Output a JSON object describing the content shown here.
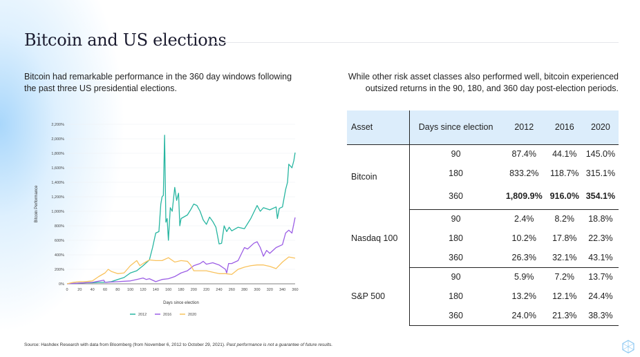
{
  "title": "Bitcoin and US elections",
  "left_text": "Bitcoin had remarkable performance in the 360 day windows following the past three US presidential elections.",
  "right_text": "While other risk asset classes also performed well, bitcoin experienced outsized returns in the 90, 180, and 360 day post-election periods.",
  "source": "Source: Hashdex Research with data from Bloomberg (from November 6, 2012 to October 29, 2021).",
  "disclaimer": "Past performance is not a guarantee of future results.",
  "table": {
    "headers": [
      "Asset",
      "Days since election",
      "2012",
      "2016",
      "2020"
    ],
    "groups": [
      {
        "asset": "Bitcoin",
        "rows": [
          [
            "90",
            "87.4%",
            "44.1%",
            "145.0%"
          ],
          [
            "180",
            "833.2%",
            "118.7%",
            "315.1%"
          ],
          [
            "360",
            "1,809.9%",
            "916.0%",
            "354.1%"
          ]
        ],
        "bold_last": true
      },
      {
        "asset": "Nasdaq 100",
        "rows": [
          [
            "90",
            "2.4%",
            "8.2%",
            "18.8%"
          ],
          [
            "180",
            "10.2%",
            "17.8%",
            "22.3%"
          ],
          [
            "360",
            "26.3%",
            "32.1%",
            "43.1%"
          ]
        ]
      },
      {
        "asset": "S&P 500",
        "rows": [
          [
            "90",
            "5.9%",
            "7.2%",
            "13.7%"
          ],
          [
            "180",
            "13.2%",
            "12.1%",
            "24.4%"
          ],
          [
            "360",
            "24.0%",
            "21.3%",
            "38.3%"
          ]
        ]
      }
    ]
  },
  "chart_data": {
    "type": "line",
    "xlabel": "Days since election",
    "ylabel": "Bitcoin Performance",
    "xlim": [
      0,
      360
    ],
    "ylim": [
      0,
      2200
    ],
    "xticks": [
      "0",
      "20",
      "40",
      "60",
      "80",
      "100",
      "120",
      "140",
      "160",
      "180",
      "200",
      "220",
      "240",
      "260",
      "280",
      "300",
      "320",
      "340",
      "360"
    ],
    "yticks": [
      "0%",
      "200%",
      "400%",
      "600%",
      "800%",
      "1,000%",
      "1,200%",
      "1,400%",
      "1,600%",
      "1,800%",
      "2,000%",
      "2,200%"
    ],
    "grid": true,
    "legend": "bottom",
    "series": [
      {
        "name": "2012",
        "color": "#26b5a0",
        "x": [
          0,
          10,
          20,
          30,
          40,
          50,
          60,
          70,
          80,
          90,
          100,
          110,
          120,
          130,
          135,
          140,
          145,
          148,
          150,
          152,
          154,
          156,
          158,
          160,
          163,
          166,
          170,
          173,
          176,
          178,
          180,
          190,
          195,
          200,
          205,
          210,
          215,
          220,
          225,
          230,
          235,
          240,
          244,
          248,
          252,
          256,
          260,
          270,
          280,
          290,
          300,
          305,
          310,
          320,
          330,
          332,
          335,
          340,
          345,
          348,
          350,
          355,
          358,
          360
        ],
        "y": [
          0,
          5,
          10,
          15,
          15,
          20,
          20,
          30,
          60,
          87,
          150,
          180,
          250,
          330,
          500,
          700,
          720,
          1100,
          1200,
          1220,
          2050,
          850,
          900,
          600,
          1050,
          1000,
          1330,
          1150,
          1250,
          800,
          900,
          950,
          1020,
          1100,
          1080,
          1000,
          880,
          820,
          920,
          860,
          780,
          550,
          560,
          800,
          720,
          780,
          730,
          780,
          760,
          900,
          1080,
          1000,
          1050,
          1020,
          1060,
          900,
          1040,
          1060,
          1300,
          1400,
          1650,
          1600,
          1700,
          1810
        ]
      },
      {
        "name": "2016",
        "color": "#9b5de5",
        "x": [
          0,
          20,
          40,
          58,
          60,
          80,
          100,
          110,
          120,
          125,
          130,
          140,
          150,
          160,
          170,
          180,
          190,
          200,
          210,
          215,
          220,
          230,
          240,
          250,
          252,
          255,
          260,
          270,
          280,
          285,
          295,
          300,
          305,
          310,
          315,
          320,
          330,
          340,
          345,
          350,
          355,
          360
        ],
        "y": [
          0,
          10,
          20,
          50,
          20,
          30,
          40,
          60,
          80,
          60,
          70,
          30,
          60,
          70,
          100,
          150,
          180,
          250,
          280,
          310,
          270,
          290,
          260,
          200,
          150,
          280,
          280,
          320,
          500,
          480,
          560,
          580,
          500,
          380,
          460,
          420,
          500,
          540,
          700,
          740,
          700,
          916
        ]
      },
      {
        "name": "2020",
        "color": "#f9c25c",
        "x": [
          0,
          10,
          20,
          30,
          40,
          50,
          60,
          65,
          70,
          80,
          90,
          100,
          110,
          115,
          120,
          130,
          140,
          150,
          160,
          170,
          180,
          190,
          195,
          200,
          210,
          220,
          230,
          240,
          250,
          260,
          270,
          280,
          290,
          300,
          310,
          320,
          330,
          340,
          350,
          360
        ],
        "y": [
          0,
          20,
          30,
          30,
          40,
          100,
          150,
          200,
          170,
          140,
          150,
          250,
          320,
          250,
          280,
          330,
          320,
          320,
          360,
          300,
          320,
          310,
          260,
          180,
          180,
          180,
          160,
          140,
          140,
          130,
          200,
          230,
          250,
          260,
          260,
          240,
          210,
          300,
          370,
          354
        ]
      }
    ]
  }
}
